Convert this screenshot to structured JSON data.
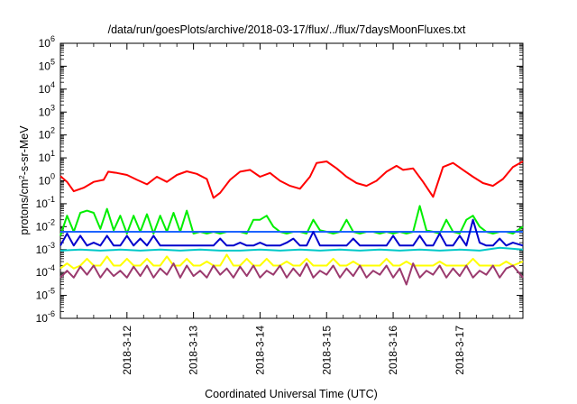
{
  "chart_data": {
    "type": "line",
    "title": "/data/run/goesPlots/archive/2018-03-17/flux/../flux/7daysMoonFluxes.txt",
    "xlabel": "Coordinated Universal Time (UTC)",
    "ylabel": "protons/cm2-s-sr-MeV",
    "ylabel_parts": {
      "pre": "protons/cm",
      "sup": "2",
      "post": "-s-sr-MeV"
    },
    "yscale": "log",
    "ylim_exp": [
      -6,
      6
    ],
    "y_ticks": [
      {
        "base": "10",
        "exp": "-6"
      },
      {
        "base": "10",
        "exp": "-5"
      },
      {
        "base": "10",
        "exp": "-4"
      },
      {
        "base": "10",
        "exp": "-3"
      },
      {
        "base": "10",
        "exp": "-2"
      },
      {
        "base": "10",
        "exp": "-1"
      },
      {
        "base": "10",
        "exp": "0"
      },
      {
        "base": "10",
        "exp": "1"
      },
      {
        "base": "10",
        "exp": "2"
      },
      {
        "base": "10",
        "exp": "3"
      },
      {
        "base": "10",
        "exp": "4"
      },
      {
        "base": "10",
        "exp": "5"
      },
      {
        "base": "10",
        "exp": "6"
      }
    ],
    "x_range_days": [
      11.0,
      17.95
    ],
    "x_ticks": [
      {
        "label": "2018-3-12",
        "day": 12
      },
      {
        "label": "2018-3-13",
        "day": 13
      },
      {
        "label": "2018-3-14",
        "day": 14
      },
      {
        "label": "2018-3-15",
        "day": 15
      },
      {
        "label": "2018-3-16",
        "day": 16
      },
      {
        "label": "2018-3-17",
        "day": 17
      }
    ],
    "grid": false,
    "legend": "none",
    "series": [
      {
        "color": "#ff0000",
        "x": [
          11.0,
          11.1,
          11.2,
          11.35,
          11.5,
          11.65,
          11.72,
          11.85,
          12.0,
          12.15,
          12.3,
          12.45,
          12.6,
          12.75,
          12.9,
          13.05,
          13.2,
          13.3,
          13.4,
          13.55,
          13.7,
          13.85,
          14.0,
          14.15,
          14.3,
          14.45,
          14.6,
          14.75,
          14.85,
          15.0,
          15.15,
          15.3,
          15.45,
          15.6,
          15.75,
          15.9,
          16.05,
          16.15,
          16.3,
          16.45,
          16.6,
          16.75,
          16.9,
          17.05,
          17.2,
          17.35,
          17.5,
          17.65,
          17.8,
          17.95
        ],
        "y": [
          1.6,
          0.9,
          0.35,
          0.5,
          0.9,
          1.1,
          2.5,
          2.2,
          1.8,
          1.1,
          0.7,
          1.5,
          0.9,
          1.8,
          2.6,
          2.0,
          1.2,
          0.18,
          0.3,
          1.1,
          2.5,
          3.0,
          1.5,
          2.2,
          1.0,
          0.6,
          0.45,
          1.5,
          6.0,
          7.0,
          3.5,
          1.5,
          0.8,
          0.6,
          1.0,
          2.5,
          4.5,
          3.0,
          3.5,
          0.9,
          0.2,
          4.0,
          6.0,
          3.0,
          1.5,
          0.8,
          0.6,
          1.2,
          4.0,
          7.0
        ]
      },
      {
        "color": "#00ee00",
        "x": [
          11.0,
          11.1,
          11.2,
          11.3,
          11.4,
          11.5,
          11.6,
          11.7,
          11.8,
          11.9,
          12.0,
          12.1,
          12.2,
          12.3,
          12.4,
          12.5,
          12.6,
          12.7,
          12.8,
          12.9,
          13.0,
          13.1,
          13.2,
          13.3,
          13.4,
          13.5,
          13.6,
          13.7,
          13.8,
          13.9,
          14.0,
          14.1,
          14.2,
          14.3,
          14.4,
          14.5,
          14.6,
          14.7,
          14.8,
          14.9,
          15.0,
          15.1,
          15.2,
          15.3,
          15.4,
          15.5,
          15.6,
          15.7,
          15.8,
          15.9,
          16.0,
          16.1,
          16.2,
          16.3,
          16.4,
          16.5,
          16.6,
          16.7,
          16.8,
          16.9,
          17.0,
          17.1,
          17.2,
          17.3,
          17.4,
          17.5,
          17.6,
          17.7,
          17.8,
          17.95
        ],
        "y": [
          0.004,
          0.03,
          0.006,
          0.04,
          0.05,
          0.04,
          0.008,
          0.06,
          0.007,
          0.03,
          0.005,
          0.03,
          0.006,
          0.035,
          0.005,
          0.03,
          0.006,
          0.04,
          0.006,
          0.05,
          0.005,
          0.006,
          0.005,
          0.006,
          0.005,
          0.006,
          0.006,
          0.006,
          0.005,
          0.02,
          0.02,
          0.03,
          0.01,
          0.006,
          0.005,
          0.006,
          0.006,
          0.005,
          0.02,
          0.007,
          0.006,
          0.005,
          0.006,
          0.02,
          0.006,
          0.005,
          0.006,
          0.006,
          0.005,
          0.006,
          0.005,
          0.006,
          0.005,
          0.006,
          0.08,
          0.007,
          0.006,
          0.005,
          0.02,
          0.006,
          0.005,
          0.02,
          0.03,
          0.01,
          0.006,
          0.005,
          0.006,
          0.006,
          0.005,
          0.01
        ]
      },
      {
        "color": "#1e64ff",
        "x": [
          11.0,
          11.2,
          11.4,
          11.6,
          11.8,
          12.0,
          12.15,
          12.3,
          12.6,
          12.9,
          13.2,
          13.5,
          13.8,
          14.0,
          14.2,
          14.4,
          14.6,
          14.8,
          15.0,
          15.2,
          15.4,
          15.6,
          15.8,
          16.0,
          16.2,
          16.4,
          16.6,
          16.8,
          17.0,
          17.2,
          17.4,
          17.6,
          17.8,
          17.95
        ],
        "y": [
          0.006,
          0.006,
          0.006,
          0.006,
          0.006,
          0.006,
          0.006,
          0.006,
          0.006,
          0.006,
          0.006,
          0.006,
          0.006,
          0.006,
          0.006,
          0.006,
          0.006,
          0.006,
          0.006,
          0.006,
          0.006,
          0.006,
          0.006,
          0.006,
          0.006,
          0.006,
          0.006,
          0.006,
          0.006,
          0.006,
          0.006,
          0.006,
          0.006,
          0.006
        ]
      },
      {
        "color": "#0000cc",
        "x": [
          11.0,
          11.1,
          11.2,
          11.3,
          11.4,
          11.5,
          11.6,
          11.7,
          11.8,
          11.9,
          12.0,
          12.1,
          12.2,
          12.3,
          12.4,
          12.5,
          12.6,
          12.7,
          12.8,
          12.9,
          13.0,
          13.1,
          13.2,
          13.3,
          13.4,
          13.5,
          13.6,
          13.7,
          13.8,
          13.9,
          14.0,
          14.1,
          14.2,
          14.3,
          14.4,
          14.5,
          14.6,
          14.7,
          14.8,
          14.9,
          15.0,
          15.1,
          15.2,
          15.3,
          15.4,
          15.5,
          15.6,
          15.7,
          15.8,
          15.9,
          16.0,
          16.1,
          16.2,
          16.3,
          16.4,
          16.5,
          16.6,
          16.7,
          16.8,
          16.9,
          17.0,
          17.1,
          17.2,
          17.3,
          17.4,
          17.5,
          17.6,
          17.7,
          17.8,
          17.95
        ],
        "y": [
          0.0015,
          0.005,
          0.0015,
          0.004,
          0.0015,
          0.002,
          0.0015,
          0.004,
          0.0015,
          0.0015,
          0.004,
          0.0015,
          0.003,
          0.0015,
          0.004,
          0.0015,
          0.0015,
          0.0015,
          0.0015,
          0.0015,
          0.0015,
          0.0015,
          0.0015,
          0.0015,
          0.003,
          0.0015,
          0.0015,
          0.002,
          0.0015,
          0.0015,
          0.002,
          0.0015,
          0.0015,
          0.0015,
          0.002,
          0.003,
          0.0015,
          0.0015,
          0.006,
          0.0015,
          0.0015,
          0.0015,
          0.0015,
          0.0015,
          0.003,
          0.0015,
          0.0015,
          0.0015,
          0.0015,
          0.0015,
          0.004,
          0.0015,
          0.0015,
          0.0015,
          0.004,
          0.0015,
          0.0015,
          0.005,
          0.0015,
          0.0015,
          0.004,
          0.0015,
          0.02,
          0.002,
          0.0015,
          0.0015,
          0.003,
          0.0015,
          0.002,
          0.0015
        ]
      },
      {
        "color": "#00c8c8",
        "x": [
          11.0,
          11.3,
          11.6,
          11.9,
          12.2,
          12.5,
          12.8,
          13.1,
          13.4,
          13.7,
          14.0,
          14.3,
          14.6,
          14.9,
          15.2,
          15.5,
          15.8,
          16.1,
          16.4,
          16.7,
          17.0,
          17.3,
          17.6,
          17.95
        ],
        "y": [
          0.0009,
          0.001,
          0.0009,
          0.001,
          0.0009,
          0.001,
          0.0009,
          0.001,
          0.0009,
          0.0009,
          0.001,
          0.0009,
          0.001,
          0.0009,
          0.001,
          0.0009,
          0.001,
          0.0009,
          0.001,
          0.0009,
          0.001,
          0.0009,
          0.0012,
          0.001
        ]
      },
      {
        "color": "#ffff00",
        "x": [
          11.0,
          11.1,
          11.2,
          11.3,
          11.4,
          11.5,
          11.6,
          11.7,
          11.8,
          11.9,
          12.0,
          12.1,
          12.2,
          12.3,
          12.4,
          12.5,
          12.6,
          12.7,
          12.8,
          12.9,
          13.0,
          13.1,
          13.2,
          13.3,
          13.4,
          13.5,
          13.6,
          13.7,
          13.8,
          13.9,
          14.0,
          14.1,
          14.2,
          14.3,
          14.4,
          14.5,
          14.6,
          14.7,
          14.8,
          14.9,
          15.0,
          15.1,
          15.2,
          15.3,
          15.4,
          15.5,
          15.6,
          15.7,
          15.8,
          15.9,
          16.0,
          16.1,
          16.2,
          16.3,
          16.4,
          16.5,
          16.6,
          16.7,
          16.8,
          16.9,
          17.0,
          17.1,
          17.2,
          17.3,
          17.4,
          17.5,
          17.6,
          17.7,
          17.8,
          17.95
        ],
        "y": [
          0.00015,
          0.00025,
          0.00015,
          0.0002,
          0.0004,
          0.0002,
          0.0002,
          0.0005,
          0.0002,
          0.0002,
          0.0004,
          0.0002,
          0.0002,
          0.0004,
          0.0002,
          0.0002,
          0.0005,
          0.0002,
          0.0002,
          0.0004,
          0.0002,
          0.0002,
          0.0003,
          0.0002,
          0.0002,
          0.0006,
          0.0002,
          0.0002,
          0.0004,
          0.0002,
          0.0002,
          0.0004,
          0.0002,
          0.0002,
          0.0003,
          0.0002,
          0.0002,
          0.0004,
          0.0002,
          0.0002,
          0.0002,
          0.0004,
          0.0002,
          0.0002,
          0.0003,
          0.0002,
          0.0002,
          0.0002,
          0.0002,
          0.0004,
          0.0002,
          0.0002,
          0.0003,
          0.0002,
          0.0002,
          0.0002,
          0.0002,
          0.0003,
          0.0002,
          0.0002,
          0.0002,
          0.0002,
          0.0004,
          0.0002,
          0.0002,
          0.0002,
          0.0002,
          0.0003,
          0.0002,
          0.0003
        ]
      },
      {
        "color": "#9b3a6e",
        "x": [
          11.0,
          11.1,
          11.2,
          11.3,
          11.4,
          11.5,
          11.6,
          11.7,
          11.8,
          11.9,
          12.0,
          12.1,
          12.2,
          12.3,
          12.4,
          12.5,
          12.6,
          12.7,
          12.8,
          12.9,
          13.0,
          13.1,
          13.2,
          13.3,
          13.4,
          13.5,
          13.6,
          13.7,
          13.8,
          13.9,
          14.0,
          14.1,
          14.2,
          14.3,
          14.4,
          14.5,
          14.6,
          14.7,
          14.8,
          14.9,
          15.0,
          15.1,
          15.2,
          15.3,
          15.4,
          15.5,
          15.6,
          15.7,
          15.8,
          15.9,
          16.0,
          16.1,
          16.2,
          16.3,
          16.4,
          16.5,
          16.6,
          16.7,
          16.8,
          16.9,
          17.0,
          17.1,
          17.2,
          17.3,
          17.4,
          17.5,
          17.6,
          17.7,
          17.8,
          17.95
        ],
        "y": [
          6e-05,
          0.00012,
          6e-05,
          0.00018,
          8e-05,
          0.0002,
          6e-05,
          0.00015,
          7e-05,
          0.00012,
          6e-05,
          0.00018,
          7e-05,
          0.0002,
          6e-05,
          0.00015,
          8e-05,
          0.00025,
          6e-05,
          0.0002,
          7e-05,
          0.00012,
          6e-05,
          0.0002,
          8e-05,
          0.00015,
          6e-05,
          0.00018,
          7e-05,
          0.0002,
          6e-05,
          0.00012,
          8e-05,
          0.0002,
          6e-05,
          0.00015,
          7e-05,
          0.00025,
          6e-05,
          0.00012,
          8e-05,
          0.0002,
          6e-05,
          0.00015,
          7e-05,
          0.0002,
          6e-05,
          0.00012,
          8e-05,
          0.0002,
          6e-05,
          0.00015,
          3e-05,
          0.00025,
          6e-05,
          0.00012,
          8e-05,
          0.0002,
          6e-05,
          0.00015,
          7e-05,
          0.0002,
          6e-05,
          0.00012,
          8e-05,
          0.0002,
          6e-05,
          0.00015,
          0.0002,
          6e-05
        ]
      }
    ]
  }
}
